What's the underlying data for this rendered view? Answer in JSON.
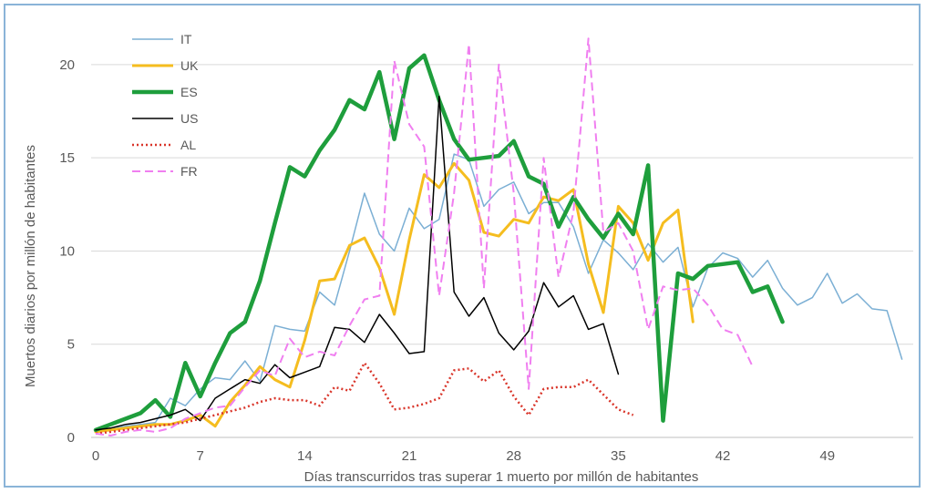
{
  "chart_data": {
    "type": "line",
    "xlabel": "Días transcurridos tras superar 1 muerto por millón de habitantes",
    "ylabel": "Muertos diarios por millón de habitantes",
    "xlim": [
      0,
      55
    ],
    "ylim": [
      0,
      22
    ],
    "xticks": [
      0,
      7,
      14,
      21,
      28,
      35,
      42,
      49
    ],
    "yticks": [
      0,
      5,
      10,
      15,
      20
    ],
    "grid": "horizontal",
    "legend_position": "top-left",
    "series": [
      {
        "name": "IT",
        "color": "#7bafd4",
        "width": 1.5,
        "dash": "",
        "values": [
          0.3,
          0.5,
          0.6,
          0.7,
          0.8,
          2.1,
          1.7,
          2.6,
          3.2,
          3.1,
          4.1,
          3.0,
          6.0,
          5.8,
          5.7,
          7.8,
          7.1,
          10.0,
          13.1,
          10.9,
          10.0,
          12.3,
          11.2,
          11.7,
          15.2,
          14.9,
          12.4,
          13.3,
          13.7,
          12.0,
          12.6,
          12.6,
          11.3,
          8.8,
          10.6,
          9.9,
          9.0,
          10.4,
          9.4,
          10.2,
          7.0,
          9.1,
          9.9,
          9.6,
          8.6,
          9.5,
          8.0,
          7.1,
          7.5,
          8.8,
          7.2,
          7.7,
          6.9,
          6.8,
          4.2
        ]
      },
      {
        "name": "UK",
        "color": "#f5bd1f",
        "width": 3,
        "dash": "",
        "values": [
          0.3,
          0.4,
          0.5,
          0.6,
          0.7,
          0.7,
          0.9,
          1.2,
          0.6,
          1.9,
          2.8,
          3.8,
          3.1,
          2.7,
          5.2,
          8.4,
          8.5,
          10.3,
          10.7,
          9.1,
          6.6,
          10.6,
          14.1,
          13.4,
          14.7,
          13.8,
          11.0,
          10.8,
          11.7,
          11.5,
          12.9,
          12.7,
          13.3,
          9.3,
          6.7,
          12.4,
          11.5,
          9.5,
          11.5,
          12.2,
          6.2
        ]
      },
      {
        "name": "ES",
        "color": "#1e9e3c",
        "width": 4.5,
        "dash": "",
        "values": [
          0.4,
          0.7,
          1.0,
          1.3,
          2.0,
          1.1,
          4.0,
          2.2,
          4.0,
          5.6,
          6.2,
          8.4,
          11.5,
          14.5,
          14.0,
          15.4,
          16.5,
          18.1,
          17.6,
          19.6,
          16.0,
          19.8,
          20.5,
          18.1,
          16.0,
          14.9,
          15.0,
          15.1,
          15.9,
          14.0,
          13.6,
          11.3,
          12.9,
          11.7,
          10.7,
          12.0,
          10.9,
          14.6,
          0.9,
          8.8,
          8.5,
          9.2,
          9.3,
          9.4,
          7.8,
          8.1,
          6.2
        ]
      },
      {
        "name": "US",
        "color": "#000000",
        "width": 1.5,
        "dash": "",
        "values": [
          0.4,
          0.5,
          0.7,
          0.8,
          1.0,
          1.2,
          1.5,
          0.9,
          2.1,
          2.6,
          3.1,
          2.9,
          3.9,
          3.2,
          3.5,
          3.8,
          5.9,
          5.8,
          5.1,
          6.6,
          5.6,
          4.5,
          4.6,
          18.3,
          7.8,
          6.5,
          7.5,
          5.6,
          4.7,
          5.7,
          8.3,
          7.0,
          7.6,
          5.8,
          6.1,
          3.4
        ]
      },
      {
        "name": "AL",
        "color": "#d9352a",
        "width": 2.5,
        "dash": "2 3",
        "values": [
          0.2,
          0.3,
          0.4,
          0.5,
          0.6,
          0.7,
          0.8,
          1.0,
          1.2,
          1.4,
          1.6,
          1.9,
          2.1,
          2.0,
          2.0,
          1.7,
          2.7,
          2.5,
          4.0,
          2.9,
          1.5,
          1.6,
          1.8,
          2.1,
          3.6,
          3.7,
          3.0,
          3.6,
          2.2,
          1.2,
          2.6,
          2.7,
          2.7,
          3.1,
          2.3,
          1.5,
          1.2
        ]
      },
      {
        "name": "FR",
        "color": "#f07ff0",
        "width": 2,
        "dash": "9 5",
        "values": [
          0.2,
          0.1,
          0.3,
          0.4,
          0.3,
          0.5,
          1.0,
          1.3,
          1.6,
          1.7,
          2.7,
          3.6,
          3.3,
          5.3,
          4.3,
          4.6,
          4.4,
          6.0,
          7.4,
          7.6,
          20.2,
          16.8,
          15.6,
          7.6,
          13.1,
          21.1,
          8.0,
          20.0,
          13.1,
          2.6,
          15.0,
          8.6,
          12.1,
          21.4,
          11.0,
          11.5,
          10.0,
          5.8,
          8.1,
          7.9,
          8.0,
          7.1,
          5.8,
          5.5,
          3.8
        ]
      }
    ]
  }
}
